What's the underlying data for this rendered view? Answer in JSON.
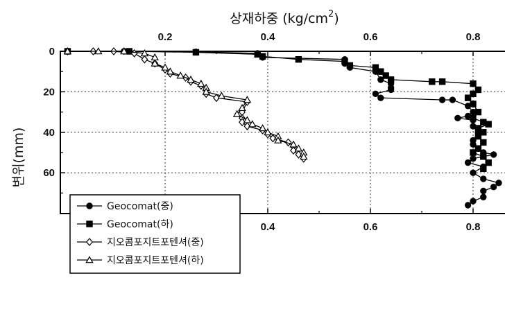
{
  "chart_data": {
    "type": "line",
    "title": "",
    "xlabel": "상재하중 (kg/cm²)",
    "xlabel_parts": {
      "main": "상재하중 (kg/cm",
      "sup": "2",
      "close": ")"
    },
    "ylabel": "변위(mm)",
    "xlim": [
      0.0,
      0.86
    ],
    "ylim": [
      0,
      80
    ],
    "y_inverted": true,
    "x_ticks": [
      0.2,
      0.4,
      0.6,
      0.8
    ],
    "x_tick_labels": [
      "0.2",
      "0.4",
      "0.6",
      "0.8"
    ],
    "y_ticks": [
      0,
      20,
      40,
      60
    ],
    "y_tick_labels": [
      "0",
      "20",
      "40",
      "60"
    ],
    "grid": true,
    "legend_position": "bottom-left",
    "series": [
      {
        "name": "Geocomat(중)",
        "marker": "filled-circle",
        "points": [
          [
            0.01,
            0
          ],
          [
            0.12,
            0
          ],
          [
            0.26,
            0.3
          ],
          [
            0.38,
            1
          ],
          [
            0.39,
            3
          ],
          [
            0.55,
            4
          ],
          [
            0.55,
            6
          ],
          [
            0.56,
            8
          ],
          [
            0.61,
            10
          ],
          [
            0.62,
            14
          ],
          [
            0.64,
            16
          ],
          [
            0.64,
            18
          ],
          [
            0.64,
            19
          ],
          [
            0.61,
            21
          ],
          [
            0.62,
            23
          ],
          [
            0.74,
            24
          ],
          [
            0.76,
            24
          ],
          [
            0.79,
            27
          ],
          [
            0.8,
            30
          ],
          [
            0.79,
            32
          ],
          [
            0.77,
            33
          ],
          [
            0.8,
            34
          ],
          [
            0.8,
            37
          ],
          [
            0.81,
            40
          ],
          [
            0.8,
            44
          ],
          [
            0.8,
            46
          ],
          [
            0.81,
            48
          ],
          [
            0.82,
            50
          ],
          [
            0.84,
            51
          ],
          [
            0.8,
            53
          ],
          [
            0.79,
            55
          ],
          [
            0.82,
            57
          ],
          [
            0.8,
            60
          ],
          [
            0.82,
            63
          ],
          [
            0.85,
            65
          ],
          [
            0.84,
            67
          ],
          [
            0.82,
            69
          ],
          [
            0.82,
            72
          ],
          [
            0.8,
            74
          ],
          [
            0.79,
            76
          ]
        ]
      },
      {
        "name": "Geocomat(하)",
        "marker": "filled-square",
        "points": [
          [
            0.01,
            0
          ],
          [
            0.13,
            0
          ],
          [
            0.26,
            0.5
          ],
          [
            0.38,
            1.5
          ],
          [
            0.39,
            2.5
          ],
          [
            0.46,
            4
          ],
          [
            0.55,
            5
          ],
          [
            0.56,
            7
          ],
          [
            0.61,
            8
          ],
          [
            0.62,
            10
          ],
          [
            0.63,
            12
          ],
          [
            0.64,
            14
          ],
          [
            0.72,
            15
          ],
          [
            0.74,
            15
          ],
          [
            0.8,
            16
          ],
          [
            0.81,
            19
          ],
          [
            0.8,
            21
          ],
          [
            0.79,
            23
          ],
          [
            0.8,
            26
          ],
          [
            0.81,
            30
          ],
          [
            0.8,
            33
          ],
          [
            0.82,
            35
          ],
          [
            0.83,
            36
          ],
          [
            0.81,
            38
          ],
          [
            0.82,
            40
          ],
          [
            0.81,
            42
          ],
          [
            0.82,
            45
          ],
          [
            0.81,
            48
          ],
          [
            0.8,
            50
          ],
          [
            0.82,
            52
          ],
          [
            0.83,
            55
          ],
          [
            0.82,
            58
          ]
        ]
      },
      {
        "name": "지오콤포지트포텐셔(중)",
        "marker": "open-diamond",
        "points": [
          [
            0.01,
            0
          ],
          [
            0.06,
            0
          ],
          [
            0.1,
            0
          ],
          [
            0.14,
            1
          ],
          [
            0.16,
            4
          ],
          [
            0.18,
            6
          ],
          [
            0.2,
            9
          ],
          [
            0.21,
            11
          ],
          [
            0.24,
            13
          ],
          [
            0.25,
            15
          ],
          [
            0.27,
            17
          ],
          [
            0.28,
            19
          ],
          [
            0.28,
            21
          ],
          [
            0.3,
            23
          ],
          [
            0.36,
            25
          ],
          [
            0.35,
            30
          ],
          [
            0.35,
            33
          ],
          [
            0.35,
            35
          ],
          [
            0.36,
            37
          ],
          [
            0.39,
            39
          ],
          [
            0.4,
            41
          ],
          [
            0.41,
            43
          ],
          [
            0.44,
            45
          ],
          [
            0.45,
            47
          ],
          [
            0.45,
            49
          ],
          [
            0.46,
            51
          ],
          [
            0.47,
            53
          ]
        ]
      },
      {
        "name": "지오콤포지트포텐셔(하)",
        "marker": "open-triangle",
        "points": [
          [
            0.01,
            0
          ],
          [
            0.07,
            0
          ],
          [
            0.12,
            0
          ],
          [
            0.16,
            1
          ],
          [
            0.18,
            3
          ],
          [
            0.18,
            6
          ],
          [
            0.2,
            8
          ],
          [
            0.21,
            10
          ],
          [
            0.23,
            12
          ],
          [
            0.25,
            14
          ],
          [
            0.27,
            16
          ],
          [
            0.28,
            18
          ],
          [
            0.28,
            20
          ],
          [
            0.31,
            22
          ],
          [
            0.36,
            24
          ],
          [
            0.35,
            28
          ],
          [
            0.34,
            31
          ],
          [
            0.36,
            34
          ],
          [
            0.37,
            36
          ],
          [
            0.39,
            38
          ],
          [
            0.4,
            40
          ],
          [
            0.42,
            42
          ],
          [
            0.42,
            44
          ],
          [
            0.45,
            46
          ],
          [
            0.46,
            48
          ],
          [
            0.47,
            50
          ],
          [
            0.47,
            52
          ]
        ]
      }
    ]
  }
}
